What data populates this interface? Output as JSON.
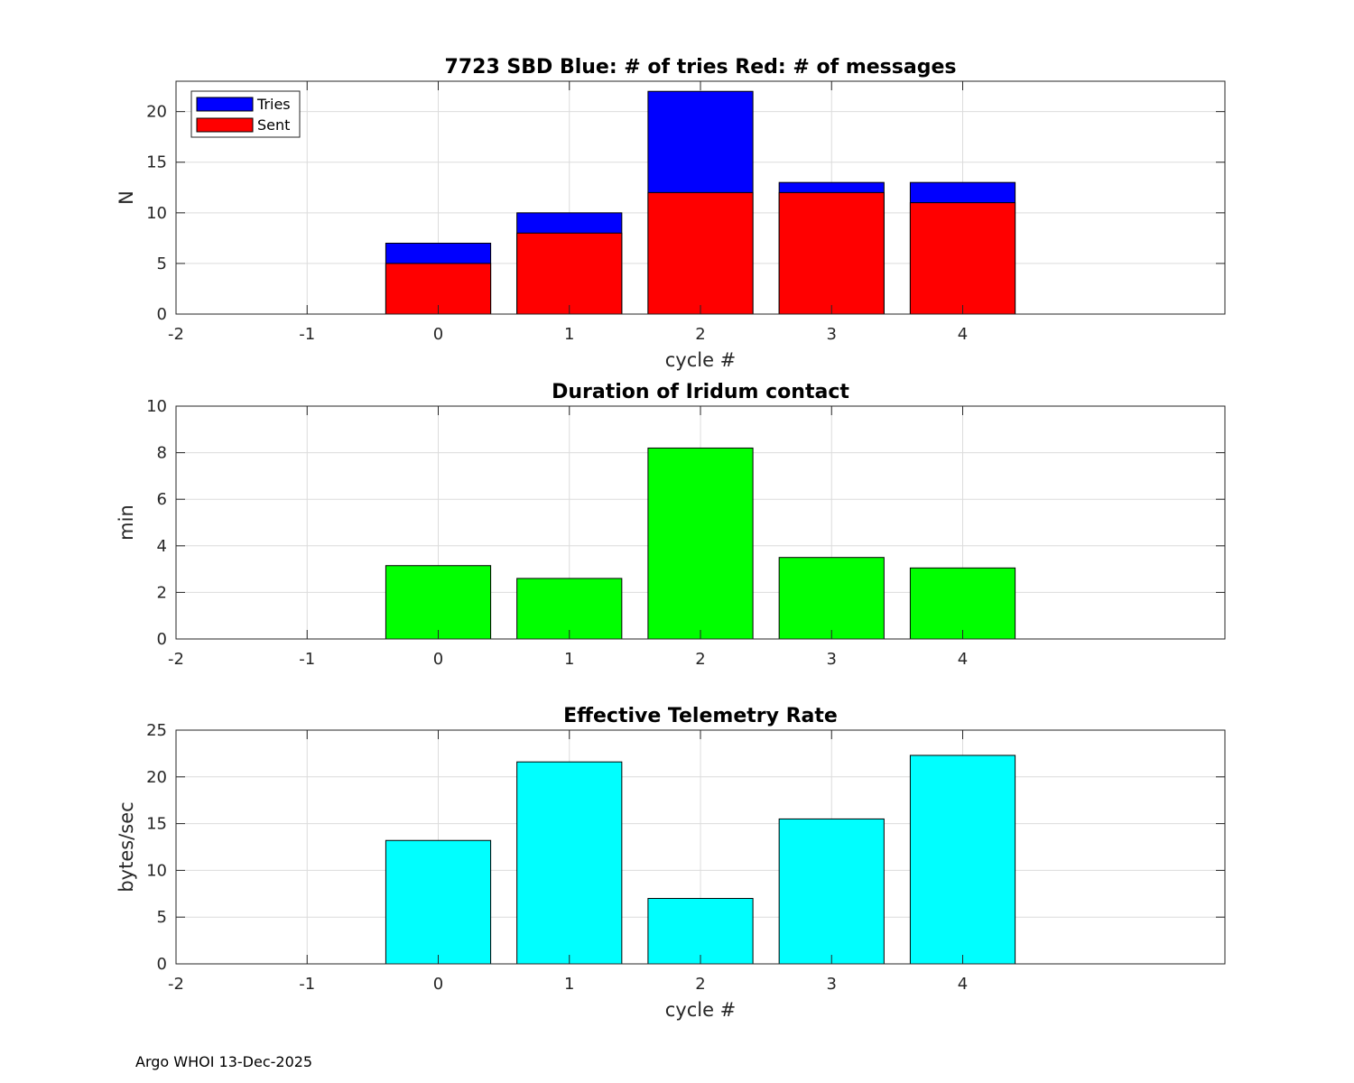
{
  "chart_data": [
    {
      "type": "bar",
      "stacked": "overlay",
      "title": "7723 SBD  Blue: # of tries   Red: # of messages",
      "xlabel": "cycle #",
      "ylabel": "N",
      "categories": [
        0,
        1,
        2,
        3,
        4
      ],
      "xlim": [
        -2,
        6
      ],
      "xticks": [
        "-2",
        "-1",
        "0",
        "1",
        "2",
        "3",
        "4"
      ],
      "ylim": [
        0,
        23
      ],
      "yticks": [
        "0",
        "5",
        "10",
        "15",
        "20"
      ],
      "grid": true,
      "legend_position": "top-left",
      "series": [
        {
          "name": "Tries",
          "color": "#0000ff",
          "values": [
            7,
            10,
            22,
            13,
            13
          ]
        },
        {
          "name": "Sent",
          "color": "#ff0000",
          "values": [
            5,
            8,
            12,
            12,
            11
          ]
        }
      ]
    },
    {
      "type": "bar",
      "title": "Duration of Iridum contact",
      "xlabel": "",
      "ylabel": "min",
      "categories": [
        0,
        1,
        2,
        3,
        4
      ],
      "xlim": [
        -2,
        6
      ],
      "xticks": [
        "-2",
        "-1",
        "0",
        "1",
        "2",
        "3",
        "4"
      ],
      "ylim": [
        0,
        10
      ],
      "yticks": [
        "0",
        "2",
        "4",
        "6",
        "8",
        "10"
      ],
      "grid": true,
      "series": [
        {
          "name": "Duration",
          "color": "#00ff00",
          "values": [
            3.15,
            2.6,
            8.2,
            3.5,
            3.05
          ]
        }
      ]
    },
    {
      "type": "bar",
      "title": "Effective Telemetry Rate",
      "xlabel": "cycle #",
      "ylabel": "bytes/sec",
      "categories": [
        0,
        1,
        2,
        3,
        4
      ],
      "xlim": [
        -2,
        6
      ],
      "xticks": [
        "-2",
        "-1",
        "0",
        "1",
        "2",
        "3",
        "4"
      ],
      "ylim": [
        0,
        25
      ],
      "yticks": [
        "0",
        "5",
        "10",
        "15",
        "20",
        "25"
      ],
      "grid": true,
      "series": [
        {
          "name": "Rate",
          "color": "#00ffff",
          "values": [
            13.2,
            21.6,
            7.0,
            15.5,
            22.3
          ]
        }
      ]
    }
  ],
  "footer": "Argo WHOI 13-Dec-2025"
}
